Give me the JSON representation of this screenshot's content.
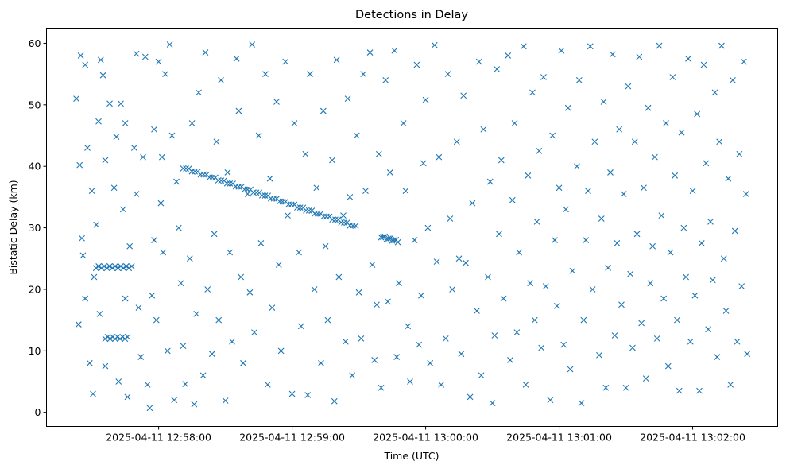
{
  "chart_data": {
    "type": "scatter",
    "title": "Detections in Delay",
    "xlabel": "Time (UTC)",
    "ylabel": "Bistatic Delay (km)",
    "x_units": "seconds after 2025-04-11 12:57:00 UTC",
    "xlim": [
      9.6,
      338.2
    ],
    "ylim": [
      -2.3,
      62.45
    ],
    "grid": false,
    "marker": "x",
    "color": "#1f77b4",
    "xticks": [
      {
        "value": 60,
        "label": "2025-04-11 12:58:00"
      },
      {
        "value": 120,
        "label": "2025-04-11 12:59:00"
      },
      {
        "value": 180,
        "label": "2025-04-11 13:00:00"
      },
      {
        "value": 240,
        "label": "2025-04-11 13:01:00"
      },
      {
        "value": 300,
        "label": "2025-04-11 13:02:00"
      }
    ],
    "yticks": [
      {
        "value": 0,
        "label": "0"
      },
      {
        "value": 10,
        "label": "10"
      },
      {
        "value": 20,
        "label": "20"
      },
      {
        "value": 30,
        "label": "30"
      },
      {
        "value": 40,
        "label": "40"
      },
      {
        "value": 50,
        "label": "50"
      },
      {
        "value": 60,
        "label": "60"
      }
    ],
    "track": {
      "t_start": 71,
      "t_end": 148.6,
      "d_start": 39.8,
      "d_end": 30.2,
      "count": 60
    },
    "track2": {
      "t_start": 160,
      "t_end": 167.5,
      "d_start": 28.6,
      "d_end": 27.8,
      "count": 10
    },
    "cluster_a": {
      "t_start": 31.8,
      "t_end": 47.9,
      "d": 23.6,
      "count": 14
    },
    "cluster_b": {
      "t_start": 36,
      "t_end": 46,
      "d": 12.1,
      "count": 10
    },
    "points": [
      [
        23,
        51
      ],
      [
        24,
        14.3
      ],
      [
        24.5,
        40.2
      ],
      [
        25,
        58
      ],
      [
        25.5,
        28.3
      ],
      [
        26,
        25.5
      ],
      [
        27,
        56.5
      ],
      [
        27,
        18.5
      ],
      [
        28,
        43
      ],
      [
        29,
        8
      ],
      [
        30,
        36
      ],
      [
        30.5,
        3
      ],
      [
        31,
        22
      ],
      [
        32,
        30.5
      ],
      [
        33,
        47.3
      ],
      [
        33.5,
        16
      ],
      [
        34,
        57.3
      ],
      [
        35,
        54.8
      ],
      [
        36,
        41
      ],
      [
        36,
        7.5
      ],
      [
        38,
        50.2
      ],
      [
        40,
        36.5
      ],
      [
        41,
        44.8
      ],
      [
        42,
        5
      ],
      [
        43,
        50.2
      ],
      [
        44,
        33
      ],
      [
        45,
        47
      ],
      [
        45,
        18.5
      ],
      [
        46,
        2.5
      ],
      [
        47,
        27
      ],
      [
        49,
        43
      ],
      [
        50,
        58.3
      ],
      [
        50,
        35.5
      ],
      [
        51,
        17
      ],
      [
        52,
        9
      ],
      [
        53,
        41.5
      ],
      [
        54,
        57.8
      ],
      [
        55,
        4.5
      ],
      [
        56,
        0.7
      ],
      [
        57,
        19
      ],
      [
        58,
        46
      ],
      [
        58,
        28
      ],
      [
        59,
        15
      ],
      [
        60,
        57
      ],
      [
        61,
        34
      ],
      [
        61.5,
        41.5
      ],
      [
        62,
        26
      ],
      [
        63,
        55
      ],
      [
        64,
        10
      ],
      [
        65,
        59.8
      ],
      [
        66,
        45
      ],
      [
        67,
        2
      ],
      [
        68,
        37.5
      ],
      [
        69,
        30
      ],
      [
        70,
        21
      ],
      [
        71,
        10.8
      ],
      [
        72,
        4.6
      ],
      [
        74,
        25
      ],
      [
        75,
        47
      ],
      [
        76,
        1.3
      ],
      [
        77,
        16
      ],
      [
        78,
        52
      ],
      [
        80,
        6
      ],
      [
        81,
        58.5
      ],
      [
        82,
        20
      ],
      [
        84,
        9.5
      ],
      [
        85,
        29
      ],
      [
        86,
        44
      ],
      [
        87,
        15
      ],
      [
        88,
        54
      ],
      [
        90,
        1.9
      ],
      [
        91,
        39
      ],
      [
        92,
        26
      ],
      [
        93,
        11.5
      ],
      [
        95,
        57.5
      ],
      [
        96,
        49
      ],
      [
        97,
        22
      ],
      [
        98,
        8
      ],
      [
        100,
        35.5
      ],
      [
        101,
        19.5
      ],
      [
        102,
        59.8
      ],
      [
        103,
        13
      ],
      [
        105,
        45
      ],
      [
        106,
        27.5
      ],
      [
        108,
        55
      ],
      [
        109,
        4.5
      ],
      [
        110,
        38
      ],
      [
        111,
        17
      ],
      [
        113,
        50.5
      ],
      [
        114,
        24
      ],
      [
        115,
        10
      ],
      [
        117,
        57
      ],
      [
        118,
        32
      ],
      [
        120,
        3
      ],
      [
        121,
        47
      ],
      [
        123,
        26
      ],
      [
        124,
        14
      ],
      [
        126,
        42
      ],
      [
        127,
        2.8
      ],
      [
        128,
        55
      ],
      [
        130,
        20
      ],
      [
        131,
        36.5
      ],
      [
        133,
        8
      ],
      [
        134,
        49
      ],
      [
        135,
        27
      ],
      [
        136,
        15
      ],
      [
        138,
        41
      ],
      [
        139,
        1.8
      ],
      [
        140,
        57.3
      ],
      [
        141,
        22
      ],
      [
        143,
        32
      ],
      [
        144,
        11.5
      ],
      [
        145,
        51
      ],
      [
        146,
        35
      ],
      [
        147,
        6
      ],
      [
        149,
        45
      ],
      [
        150,
        19.5
      ],
      [
        151,
        12
      ],
      [
        152,
        55
      ],
      [
        153,
        36
      ],
      [
        155,
        58.5
      ],
      [
        156,
        24
      ],
      [
        157,
        8.5
      ],
      [
        158,
        17.5
      ],
      [
        159,
        42
      ],
      [
        160,
        4
      ],
      [
        162,
        54
      ],
      [
        163,
        18
      ],
      [
        164,
        39
      ],
      [
        166,
        58.8
      ],
      [
        167,
        9
      ],
      [
        168,
        21
      ],
      [
        170,
        47
      ],
      [
        171,
        36
      ],
      [
        172,
        14
      ],
      [
        173,
        5
      ],
      [
        175,
        28
      ],
      [
        176,
        56.5
      ],
      [
        177,
        11
      ],
      [
        178,
        19
      ],
      [
        179,
        40.5
      ],
      [
        180,
        50.8
      ],
      [
        181,
        30
      ],
      [
        182,
        8
      ],
      [
        184,
        59.7
      ],
      [
        185,
        24.5
      ],
      [
        186,
        41.5
      ],
      [
        187,
        4.5
      ],
      [
        189,
        12
      ],
      [
        190,
        55
      ],
      [
        191,
        31.5
      ],
      [
        192,
        20
      ],
      [
        194,
        44
      ],
      [
        195,
        25
      ],
      [
        196,
        9.5
      ],
      [
        197,
        51.5
      ],
      [
        198,
        24.3
      ],
      [
        200,
        2.5
      ],
      [
        201,
        34
      ],
      [
        203,
        16.5
      ],
      [
        204,
        57
      ],
      [
        205,
        6
      ],
      [
        206,
        46
      ],
      [
        208,
        22
      ],
      [
        209,
        37.5
      ],
      [
        210,
        1.5
      ],
      [
        211,
        12.5
      ],
      [
        212,
        55.8
      ],
      [
        213,
        29
      ],
      [
        214,
        41
      ],
      [
        215,
        18.5
      ],
      [
        217,
        58
      ],
      [
        218,
        8.5
      ],
      [
        219,
        34.5
      ],
      [
        220,
        47
      ],
      [
        221,
        13
      ],
      [
        222,
        26
      ],
      [
        224,
        59.5
      ],
      [
        225,
        4.5
      ],
      [
        226,
        38.5
      ],
      [
        227,
        21
      ],
      [
        228,
        52
      ],
      [
        229,
        15
      ],
      [
        230,
        31
      ],
      [
        231,
        42.5
      ],
      [
        232,
        10.5
      ],
      [
        233,
        54.5
      ],
      [
        234,
        20.5
      ],
      [
        236,
        2
      ],
      [
        237,
        45
      ],
      [
        238,
        28
      ],
      [
        239,
        17.3
      ],
      [
        240,
        36.5
      ],
      [
        241,
        58.8
      ],
      [
        242,
        11
      ],
      [
        243,
        33
      ],
      [
        244,
        49.5
      ],
      [
        245,
        7
      ],
      [
        246,
        23
      ],
      [
        248,
        40
      ],
      [
        249,
        54
      ],
      [
        250,
        1.5
      ],
      [
        251,
        15
      ],
      [
        252,
        28
      ],
      [
        253,
        36
      ],
      [
        254,
        59.5
      ],
      [
        255,
        20
      ],
      [
        256,
        44
      ],
      [
        258,
        9.3
      ],
      [
        259,
        31.5
      ],
      [
        260,
        50.5
      ],
      [
        261,
        4
      ],
      [
        262,
        23.5
      ],
      [
        263,
        39
      ],
      [
        264,
        58.2
      ],
      [
        265,
        12.5
      ],
      [
        266,
        27.5
      ],
      [
        267,
        46
      ],
      [
        268,
        17.5
      ],
      [
        269,
        35.5
      ],
      [
        270,
        4
      ],
      [
        271,
        53
      ],
      [
        272,
        22.5
      ],
      [
        273,
        10.5
      ],
      [
        274,
        44
      ],
      [
        275,
        29
      ],
      [
        276,
        57.8
      ],
      [
        277,
        14.5
      ],
      [
        278,
        36.5
      ],
      [
        279,
        5.5
      ],
      [
        280,
        49.5
      ],
      [
        281,
        21
      ],
      [
        282,
        27
      ],
      [
        283,
        41.5
      ],
      [
        284,
        12
      ],
      [
        285,
        59.6
      ],
      [
        286,
        32
      ],
      [
        287,
        18.5
      ],
      [
        288,
        47
      ],
      [
        289,
        7.5
      ],
      [
        290,
        26
      ],
      [
        291,
        54.5
      ],
      [
        292,
        38.5
      ],
      [
        293,
        15
      ],
      [
        294,
        3.5
      ],
      [
        295,
        45.5
      ],
      [
        296,
        30
      ],
      [
        297,
        22
      ],
      [
        298,
        57.5
      ],
      [
        299,
        11.5
      ],
      [
        300,
        36
      ],
      [
        301,
        19
      ],
      [
        302,
        48.5
      ],
      [
        303,
        3.5
      ],
      [
        304,
        27.5
      ],
      [
        305,
        56.5
      ],
      [
        306,
        40.5
      ],
      [
        307,
        13.5
      ],
      [
        308,
        31
      ],
      [
        309,
        21.5
      ],
      [
        310,
        52
      ],
      [
        311,
        9
      ],
      [
        312,
        44
      ],
      [
        313,
        59.6
      ],
      [
        314,
        25
      ],
      [
        315,
        16.5
      ],
      [
        316,
        38
      ],
      [
        317,
        4.5
      ],
      [
        318,
        54
      ],
      [
        319,
        29.5
      ],
      [
        320,
        11.5
      ],
      [
        321,
        42
      ],
      [
        322,
        20.5
      ],
      [
        323,
        57
      ],
      [
        324,
        35.5
      ],
      [
        324.5,
        9.5
      ]
    ]
  }
}
